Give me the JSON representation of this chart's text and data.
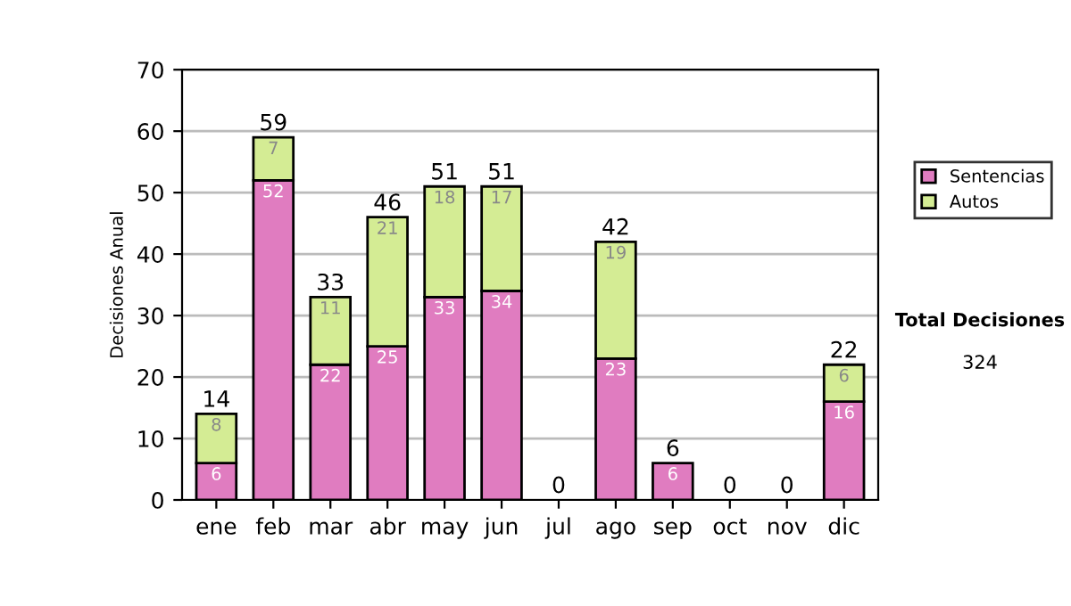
{
  "chart_data": {
    "type": "bar",
    "stacked": true,
    "ylabel": "Decisiones Anual",
    "categories": [
      "ene",
      "feb",
      "mar",
      "abr",
      "may",
      "jun",
      "jul",
      "ago",
      "sep",
      "oct",
      "nov",
      "dic"
    ],
    "series": [
      {
        "name": "Sentencias",
        "color": "#e07cc0",
        "values": [
          6,
          52,
          22,
          25,
          33,
          34,
          0,
          23,
          6,
          0,
          0,
          16
        ],
        "value_labels": [
          "6",
          "52",
          "22",
          "25",
          "33",
          "34",
          null,
          "23",
          "6",
          null,
          null,
          "16"
        ]
      },
      {
        "name": "Autos",
        "color": "#d4ec94",
        "values": [
          8,
          7,
          11,
          21,
          18,
          17,
          0,
          19,
          0,
          0,
          0,
          6
        ],
        "value_labels": [
          "8",
          "7",
          "11",
          "21",
          "18",
          "17",
          null,
          "19",
          null,
          null,
          null,
          "6"
        ]
      }
    ],
    "totals": [
      "14",
      "59",
      "33",
      "46",
      "51",
      "51",
      "0",
      "42",
      "6",
      "0",
      "0",
      "22"
    ],
    "ylim": [
      0,
      70
    ],
    "yticks": [
      0,
      10,
      20,
      30,
      40,
      50,
      60,
      70
    ],
    "grid": "y",
    "legend": "right",
    "annotations": [
      "Total Decisiones",
      "324"
    ]
  }
}
